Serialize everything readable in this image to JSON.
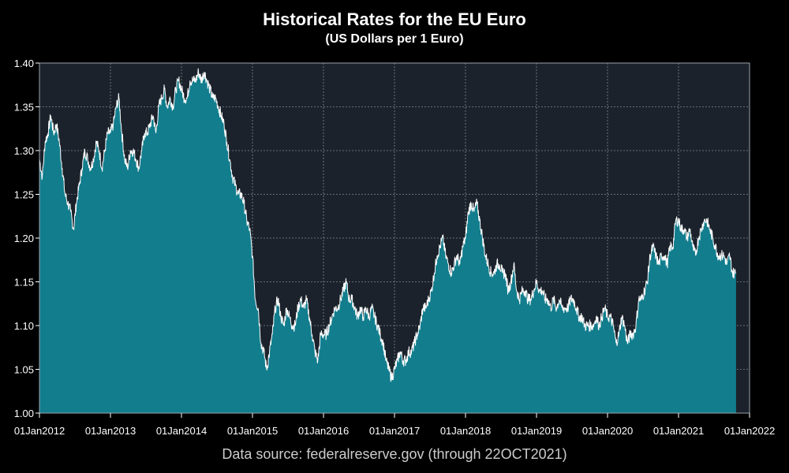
{
  "chart_data": {
    "type": "area",
    "title": "Historical Rates for the EU Euro",
    "subtitle": "(US Dollars per 1 Euro)",
    "source": "Data source: federalreserve.gov (through 22OCT2021)",
    "xlabel": "",
    "ylabel": "",
    "xlim": [
      2012.0,
      2022.0
    ],
    "ylim": [
      1.0,
      1.4
    ],
    "grid": true,
    "colors": {
      "fill": "#127d8d",
      "line": "#ffffff",
      "plot_bg": "#1b222b",
      "grid": "#7f8a94"
    },
    "x_ticks": [
      {
        "value": 2012,
        "label": "01Jan2012"
      },
      {
        "value": 2013,
        "label": "01Jan2013"
      },
      {
        "value": 2014,
        "label": "01Jan2014"
      },
      {
        "value": 2015,
        "label": "01Jan2015"
      },
      {
        "value": 2016,
        "label": "01Jan2016"
      },
      {
        "value": 2017,
        "label": "01Jan2017"
      },
      {
        "value": 2018,
        "label": "01Jan2018"
      },
      {
        "value": 2019,
        "label": "01Jan2019"
      },
      {
        "value": 2020,
        "label": "01Jan2020"
      },
      {
        "value": 2021,
        "label": "01Jan2021"
      },
      {
        "value": 2022,
        "label": "01Jan2022"
      }
    ],
    "y_ticks": [
      {
        "value": 1.0,
        "label": "1.00"
      },
      {
        "value": 1.05,
        "label": "1.05"
      },
      {
        "value": 1.1,
        "label": "1.10"
      },
      {
        "value": 1.15,
        "label": "1.15"
      },
      {
        "value": 1.2,
        "label": "1.20"
      },
      {
        "value": 1.25,
        "label": "1.25"
      },
      {
        "value": 1.3,
        "label": "1.30"
      },
      {
        "value": 1.35,
        "label": "1.35"
      },
      {
        "value": 1.4,
        "label": "1.40"
      }
    ],
    "series": [
      {
        "name": "USD per EUR",
        "x": [
          2012.0,
          2012.04,
          2012.08,
          2012.12,
          2012.16,
          2012.2,
          2012.24,
          2012.28,
          2012.32,
          2012.36,
          2012.4,
          2012.44,
          2012.48,
          2012.52,
          2012.56,
          2012.6,
          2012.64,
          2012.68,
          2012.72,
          2012.76,
          2012.8,
          2012.84,
          2012.88,
          2012.92,
          2012.96,
          2013.0,
          2013.04,
          2013.08,
          2013.12,
          2013.16,
          2013.2,
          2013.24,
          2013.28,
          2013.32,
          2013.36,
          2013.4,
          2013.44,
          2013.48,
          2013.52,
          2013.56,
          2013.6,
          2013.64,
          2013.68,
          2013.72,
          2013.76,
          2013.8,
          2013.84,
          2013.88,
          2013.92,
          2013.96,
          2014.0,
          2014.04,
          2014.08,
          2014.12,
          2014.16,
          2014.2,
          2014.24,
          2014.28,
          2014.32,
          2014.36,
          2014.4,
          2014.44,
          2014.48,
          2014.52,
          2014.56,
          2014.6,
          2014.64,
          2014.68,
          2014.72,
          2014.76,
          2014.8,
          2014.84,
          2014.88,
          2014.92,
          2014.96,
          2015.0,
          2015.04,
          2015.08,
          2015.12,
          2015.16,
          2015.2,
          2015.24,
          2015.28,
          2015.32,
          2015.36,
          2015.4,
          2015.44,
          2015.48,
          2015.52,
          2015.56,
          2015.6,
          2015.64,
          2015.68,
          2015.72,
          2015.76,
          2015.8,
          2015.84,
          2015.88,
          2015.92,
          2015.96,
          2016.0,
          2016.04,
          2016.08,
          2016.12,
          2016.16,
          2016.2,
          2016.24,
          2016.28,
          2016.32,
          2016.36,
          2016.4,
          2016.44,
          2016.48,
          2016.52,
          2016.56,
          2016.6,
          2016.64,
          2016.68,
          2016.72,
          2016.76,
          2016.8,
          2016.84,
          2016.88,
          2016.92,
          2016.96,
          2017.0,
          2017.04,
          2017.08,
          2017.12,
          2017.16,
          2017.2,
          2017.24,
          2017.28,
          2017.32,
          2017.36,
          2017.4,
          2017.44,
          2017.48,
          2017.52,
          2017.56,
          2017.6,
          2017.64,
          2017.68,
          2017.72,
          2017.76,
          2017.8,
          2017.84,
          2017.88,
          2017.92,
          2017.96,
          2018.0,
          2018.04,
          2018.08,
          2018.12,
          2018.16,
          2018.2,
          2018.24,
          2018.28,
          2018.32,
          2018.36,
          2018.4,
          2018.44,
          2018.48,
          2018.52,
          2018.56,
          2018.6,
          2018.64,
          2018.68,
          2018.72,
          2018.76,
          2018.8,
          2018.84,
          2018.88,
          2018.92,
          2018.96,
          2019.0,
          2019.04,
          2019.08,
          2019.12,
          2019.16,
          2019.2,
          2019.24,
          2019.28,
          2019.32,
          2019.36,
          2019.4,
          2019.44,
          2019.48,
          2019.52,
          2019.56,
          2019.6,
          2019.64,
          2019.68,
          2019.72,
          2019.76,
          2019.8,
          2019.84,
          2019.88,
          2019.92,
          2019.96,
          2020.0,
          2020.04,
          2020.08,
          2020.12,
          2020.16,
          2020.2,
          2020.24,
          2020.28,
          2020.32,
          2020.36,
          2020.4,
          2020.44,
          2020.48,
          2020.52,
          2020.56,
          2020.6,
          2020.64,
          2020.68,
          2020.72,
          2020.76,
          2020.8,
          2020.84,
          2020.88,
          2020.92,
          2020.96,
          2021.0,
          2021.04,
          2021.08,
          2021.12,
          2021.16,
          2021.2,
          2021.24,
          2021.28,
          2021.32,
          2021.36,
          2021.4,
          2021.44,
          2021.48,
          2021.52,
          2021.56,
          2021.6,
          2021.64,
          2021.68,
          2021.72,
          2021.76,
          2021.81
        ],
        "values": [
          1.29,
          1.27,
          1.31,
          1.32,
          1.34,
          1.32,
          1.33,
          1.31,
          1.28,
          1.25,
          1.24,
          1.23,
          1.21,
          1.24,
          1.26,
          1.28,
          1.3,
          1.29,
          1.28,
          1.29,
          1.31,
          1.3,
          1.28,
          1.3,
          1.32,
          1.32,
          1.33,
          1.35,
          1.36,
          1.32,
          1.29,
          1.28,
          1.3,
          1.3,
          1.29,
          1.28,
          1.3,
          1.32,
          1.32,
          1.33,
          1.34,
          1.32,
          1.35,
          1.36,
          1.37,
          1.35,
          1.36,
          1.35,
          1.37,
          1.38,
          1.37,
          1.36,
          1.36,
          1.38,
          1.38,
          1.38,
          1.39,
          1.38,
          1.39,
          1.38,
          1.37,
          1.36,
          1.36,
          1.35,
          1.34,
          1.33,
          1.31,
          1.29,
          1.27,
          1.26,
          1.25,
          1.25,
          1.24,
          1.22,
          1.21,
          1.18,
          1.13,
          1.12,
          1.08,
          1.07,
          1.05,
          1.07,
          1.09,
          1.12,
          1.13,
          1.11,
          1.1,
          1.12,
          1.11,
          1.1,
          1.1,
          1.12,
          1.13,
          1.12,
          1.13,
          1.11,
          1.09,
          1.07,
          1.06,
          1.09,
          1.09,
          1.09,
          1.1,
          1.11,
          1.12,
          1.12,
          1.13,
          1.14,
          1.15,
          1.13,
          1.13,
          1.12,
          1.11,
          1.12,
          1.11,
          1.12,
          1.11,
          1.12,
          1.11,
          1.1,
          1.09,
          1.08,
          1.06,
          1.05,
          1.04,
          1.05,
          1.06,
          1.07,
          1.06,
          1.06,
          1.07,
          1.07,
          1.08,
          1.09,
          1.1,
          1.12,
          1.12,
          1.13,
          1.14,
          1.16,
          1.18,
          1.19,
          1.2,
          1.18,
          1.17,
          1.16,
          1.17,
          1.18,
          1.17,
          1.19,
          1.2,
          1.23,
          1.24,
          1.23,
          1.24,
          1.22,
          1.2,
          1.18,
          1.17,
          1.16,
          1.16,
          1.17,
          1.17,
          1.16,
          1.16,
          1.14,
          1.15,
          1.17,
          1.14,
          1.13,
          1.14,
          1.14,
          1.13,
          1.13,
          1.14,
          1.15,
          1.14,
          1.14,
          1.13,
          1.13,
          1.12,
          1.13,
          1.12,
          1.13,
          1.12,
          1.12,
          1.12,
          1.13,
          1.13,
          1.12,
          1.11,
          1.11,
          1.1,
          1.1,
          1.1,
          1.1,
          1.11,
          1.1,
          1.11,
          1.12,
          1.11,
          1.11,
          1.1,
          1.08,
          1.09,
          1.11,
          1.1,
          1.08,
          1.09,
          1.09,
          1.1,
          1.13,
          1.13,
          1.14,
          1.15,
          1.18,
          1.19,
          1.18,
          1.17,
          1.18,
          1.18,
          1.17,
          1.19,
          1.19,
          1.22,
          1.22,
          1.21,
          1.21,
          1.2,
          1.21,
          1.19,
          1.18,
          1.2,
          1.21,
          1.22,
          1.22,
          1.21,
          1.2,
          1.19,
          1.18,
          1.18,
          1.18,
          1.17,
          1.18,
          1.16,
          1.16
        ]
      }
    ]
  }
}
